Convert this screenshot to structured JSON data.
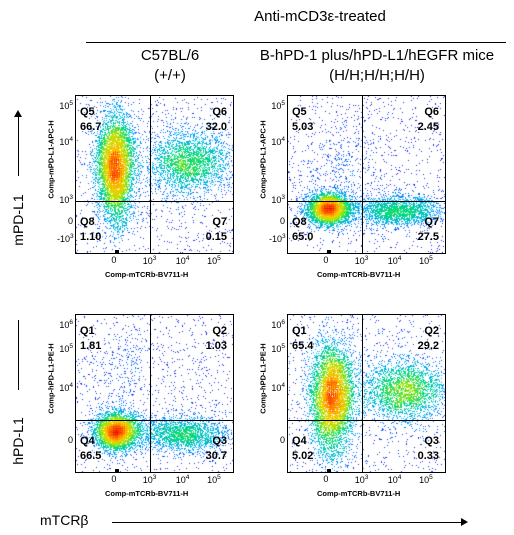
{
  "header": {
    "treatment": "Anti-mCD3ε-treated",
    "col1": {
      "line1": "C57BL/6",
      "line2": "(+/+)"
    },
    "col2": {
      "line1": "B-hPD-1 plus/hPD-L1/hEGFR mice",
      "line2": "(H/H;H/H;H/H)"
    }
  },
  "row_labels": {
    "top": "mPD-L1",
    "bottom": "hPD-L1",
    "x_title": "mTCRβ"
  },
  "chart_data": [
    {
      "type": "scatter",
      "panel": "top-left",
      "xlabel": "Comp-mTCRb-BV711-H",
      "ylabel": "Comp-mPD-L1-APC-H",
      "x_ticks": [
        "0",
        "10",
        "10",
        "10"
      ],
      "x_tick_sup": [
        "",
        "3",
        "4",
        "5"
      ],
      "y_ticks": [
        "10",
        "10",
        "10",
        "0",
        "-10"
      ],
      "y_tick_sup": [
        "5",
        "4",
        "3",
        "",
        "3"
      ],
      "quadrants": [
        {
          "name": "Q5",
          "value": "66.7"
        },
        {
          "name": "Q6",
          "value": "32.0"
        },
        {
          "name": "Q8",
          "value": "1.10"
        },
        {
          "name": "Q7",
          "value": "0.15"
        }
      ]
    },
    {
      "type": "scatter",
      "panel": "top-right",
      "xlabel": "Comp-mTCRb-BV711-H",
      "ylabel": "Comp-mPD-L1-APC-H",
      "x_ticks": [
        "0",
        "10",
        "10",
        "10"
      ],
      "x_tick_sup": [
        "",
        "3",
        "4",
        "5"
      ],
      "y_ticks": [
        "10",
        "10",
        "10",
        "0",
        "-10"
      ],
      "y_tick_sup": [
        "5",
        "4",
        "3",
        "",
        "3"
      ],
      "quadrants": [
        {
          "name": "Q5",
          "value": "5.03"
        },
        {
          "name": "Q6",
          "value": "2.45"
        },
        {
          "name": "Q8",
          "value": "65.0"
        },
        {
          "name": "Q7",
          "value": "27.5"
        }
      ]
    },
    {
      "type": "scatter",
      "panel": "bottom-left",
      "xlabel": "Comp-mTCRb-BV711-H",
      "ylabel": "Comp-hPD-L1-PE-H",
      "x_ticks": [
        "0",
        "10",
        "10",
        "10"
      ],
      "x_tick_sup": [
        "",
        "3",
        "4",
        "5"
      ],
      "y_ticks": [
        "10",
        "10",
        "10",
        "0"
      ],
      "y_tick_sup": [
        "6",
        "5",
        "4",
        ""
      ],
      "quadrants": [
        {
          "name": "Q1",
          "value": "1.81"
        },
        {
          "name": "Q2",
          "value": "1.03"
        },
        {
          "name": "Q4",
          "value": "66.5"
        },
        {
          "name": "Q3",
          "value": "30.7"
        }
      ]
    },
    {
      "type": "scatter",
      "panel": "bottom-right",
      "xlabel": "Comp-mTCRb-BV711-H",
      "ylabel": "Comp-hPD-L1-PE-H",
      "x_ticks": [
        "0",
        "10",
        "10",
        "10"
      ],
      "x_tick_sup": [
        "",
        "3",
        "4",
        "5"
      ],
      "y_ticks": [
        "10",
        "10",
        "10",
        "0"
      ],
      "y_tick_sup": [
        "6",
        "5",
        "4",
        ""
      ],
      "quadrants": [
        {
          "name": "Q1",
          "value": "65.4"
        },
        {
          "name": "Q2",
          "value": "29.2"
        },
        {
          "name": "Q4",
          "value": "5.02"
        },
        {
          "name": "Q3",
          "value": "0.33"
        }
      ]
    }
  ]
}
